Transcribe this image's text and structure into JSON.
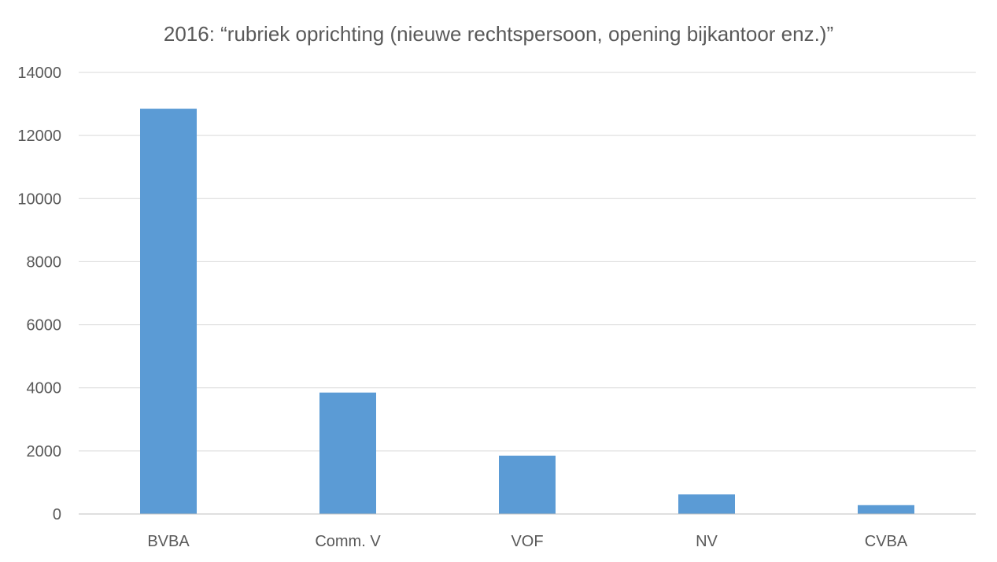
{
  "chart_data": {
    "type": "bar",
    "title": "2016: “rubriek oprichting (nieuwe rechtspersoon, opening bijkantoor enz.)”",
    "categories": [
      "BVBA",
      "Comm. V",
      "VOF",
      "NV",
      "CVBA"
    ],
    "values": [
      12850,
      3850,
      1850,
      620,
      280
    ],
    "ylim": [
      0,
      14000
    ],
    "yticks": [
      0,
      2000,
      4000,
      6000,
      8000,
      10000,
      12000,
      14000
    ],
    "xlabel": "",
    "ylabel": "",
    "grid": true,
    "legend": "none",
    "bar_color": "#5b9bd5"
  }
}
